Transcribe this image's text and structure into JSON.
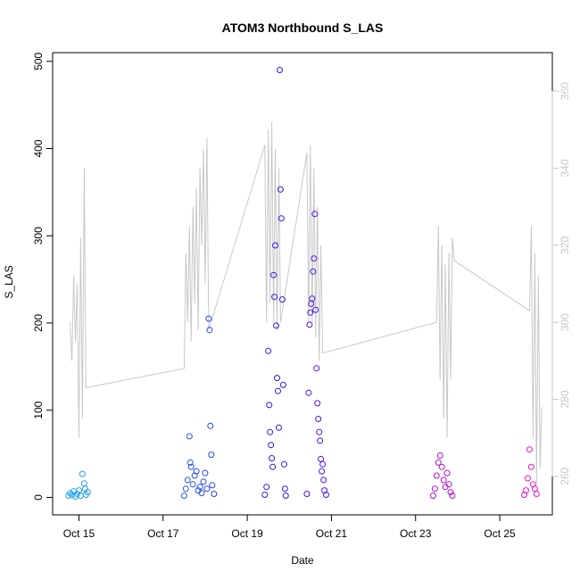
{
  "chart_data": {
    "type": "scatter",
    "title": "ATOM3 Northbound S_LAS",
    "xlabel": "Date",
    "ylabel": "S_LAS",
    "x_unit": "date",
    "xlim": [
      "2023-10-14T09:00",
      "2023-10-26T06:00"
    ],
    "ylim": [
      -20,
      510
    ],
    "x_ticks": [
      {
        "value": "2023-10-15T00:00",
        "label": "Oct 15"
      },
      {
        "value": "2023-10-17T00:00",
        "label": "Oct 17"
      },
      {
        "value": "2023-10-19T00:00",
        "label": "Oct 19"
      },
      {
        "value": "2023-10-21T00:00",
        "label": "Oct 21"
      },
      {
        "value": "2023-10-23T00:00",
        "label": "Oct 23"
      },
      {
        "value": "2023-10-25T00:00",
        "label": "Oct 25"
      }
    ],
    "y_ticks": [
      0,
      100,
      200,
      300,
      400,
      500
    ],
    "secondary_axis": {
      "side": "right",
      "ylim": [
        250,
        370
      ],
      "ticks": [
        260,
        280,
        300,
        320,
        340,
        360
      ],
      "color": "#c8c8c8"
    },
    "grid": false,
    "legend": "none",
    "point_color_start": "#1fb4ea",
    "point_color_mid": "#2b16e6",
    "point_color_end": "#ff10c8",
    "line_color": "#c8c8c8",
    "points": [
      {
        "x": "2023-10-14T18:00",
        "y": 2
      },
      {
        "x": "2023-10-14T19:00",
        "y": 5
      },
      {
        "x": "2023-10-14T20:00",
        "y": 3
      },
      {
        "x": "2023-10-14T21:00",
        "y": 7
      },
      {
        "x": "2023-10-14T22:00",
        "y": 1
      },
      {
        "x": "2023-10-14T23:00",
        "y": 4
      },
      {
        "x": "2023-10-15T00:00",
        "y": 8
      },
      {
        "x": "2023-10-15T01:00",
        "y": 2
      },
      {
        "x": "2023-10-15T02:00",
        "y": 27
      },
      {
        "x": "2023-10-15T03:00",
        "y": 16
      },
      {
        "x": "2023-10-15T03:30",
        "y": 10
      },
      {
        "x": "2023-10-15T04:00",
        "y": 3
      },
      {
        "x": "2023-10-15T05:00",
        "y": 6
      },
      {
        "x": "2023-10-17T12:00",
        "y": 2
      },
      {
        "x": "2023-10-17T13:00",
        "y": 10
      },
      {
        "x": "2023-10-17T14:00",
        "y": 20
      },
      {
        "x": "2023-10-17T15:00",
        "y": 70
      },
      {
        "x": "2023-10-17T15:30",
        "y": 40
      },
      {
        "x": "2023-10-17T16:00",
        "y": 35
      },
      {
        "x": "2023-10-17T17:00",
        "y": 15
      },
      {
        "x": "2023-10-17T18:00",
        "y": 25
      },
      {
        "x": "2023-10-17T19:00",
        "y": 30
      },
      {
        "x": "2023-10-17T20:00",
        "y": 8
      },
      {
        "x": "2023-10-17T21:00",
        "y": 12
      },
      {
        "x": "2023-10-17T22:00",
        "y": 5
      },
      {
        "x": "2023-10-17T23:00",
        "y": 18
      },
      {
        "x": "2023-10-18T00:00",
        "y": 28
      },
      {
        "x": "2023-10-18T01:00",
        "y": 10
      },
      {
        "x": "2023-10-18T02:00",
        "y": 205
      },
      {
        "x": "2023-10-18T02:30",
        "y": 192
      },
      {
        "x": "2023-10-18T03:00",
        "y": 82
      },
      {
        "x": "2023-10-18T03:30",
        "y": 49
      },
      {
        "x": "2023-10-18T04:00",
        "y": 14
      },
      {
        "x": "2023-10-18T05:00",
        "y": 4
      },
      {
        "x": "2023-10-19T10:00",
        "y": 3
      },
      {
        "x": "2023-10-19T11:00",
        "y": 12
      },
      {
        "x": "2023-10-19T12:00",
        "y": 168
      },
      {
        "x": "2023-10-19T12:30",
        "y": 106
      },
      {
        "x": "2023-10-19T13:00",
        "y": 75
      },
      {
        "x": "2023-10-19T13:30",
        "y": 60
      },
      {
        "x": "2023-10-19T14:00",
        "y": 45
      },
      {
        "x": "2023-10-19T14:30",
        "y": 35
      },
      {
        "x": "2023-10-19T15:00",
        "y": 255
      },
      {
        "x": "2023-10-19T15:30",
        "y": 230
      },
      {
        "x": "2023-10-19T16:00",
        "y": 289
      },
      {
        "x": "2023-10-19T16:30",
        "y": 197
      },
      {
        "x": "2023-10-19T17:00",
        "y": 137
      },
      {
        "x": "2023-10-19T17:30",
        "y": 122
      },
      {
        "x": "2023-10-19T18:00",
        "y": 80
      },
      {
        "x": "2023-10-19T18:30",
        "y": 490
      },
      {
        "x": "2023-10-19T19:00",
        "y": 353
      },
      {
        "x": "2023-10-19T19:30",
        "y": 320
      },
      {
        "x": "2023-10-19T20:00",
        "y": 227
      },
      {
        "x": "2023-10-19T20:30",
        "y": 129
      },
      {
        "x": "2023-10-19T21:00",
        "y": 38
      },
      {
        "x": "2023-10-19T21:30",
        "y": 10
      },
      {
        "x": "2023-10-19T22:00",
        "y": 2
      },
      {
        "x": "2023-10-20T10:00",
        "y": 4
      },
      {
        "x": "2023-10-20T11:00",
        "y": 120
      },
      {
        "x": "2023-10-20T11:30",
        "y": 198
      },
      {
        "x": "2023-10-20T12:00",
        "y": 212
      },
      {
        "x": "2023-10-20T12:30",
        "y": 222
      },
      {
        "x": "2023-10-20T13:00",
        "y": 228
      },
      {
        "x": "2023-10-20T13:30",
        "y": 259
      },
      {
        "x": "2023-10-20T14:00",
        "y": 274
      },
      {
        "x": "2023-10-20T14:30",
        "y": 325
      },
      {
        "x": "2023-10-20T15:00",
        "y": 215
      },
      {
        "x": "2023-10-20T15:30",
        "y": 148
      },
      {
        "x": "2023-10-20T16:00",
        "y": 108
      },
      {
        "x": "2023-10-20T16:30",
        "y": 90
      },
      {
        "x": "2023-10-20T17:00",
        "y": 75
      },
      {
        "x": "2023-10-20T17:30",
        "y": 65
      },
      {
        "x": "2023-10-20T18:00",
        "y": 44
      },
      {
        "x": "2023-10-20T18:30",
        "y": 30
      },
      {
        "x": "2023-10-20T19:00",
        "y": 38
      },
      {
        "x": "2023-10-20T19:30",
        "y": 20
      },
      {
        "x": "2023-10-20T20:00",
        "y": 8
      },
      {
        "x": "2023-10-20T21:00",
        "y": 3
      },
      {
        "x": "2023-10-23T10:00",
        "y": 2
      },
      {
        "x": "2023-10-23T11:00",
        "y": 10
      },
      {
        "x": "2023-10-23T12:00",
        "y": 25
      },
      {
        "x": "2023-10-23T13:00",
        "y": 40
      },
      {
        "x": "2023-10-23T14:00",
        "y": 48
      },
      {
        "x": "2023-10-23T15:00",
        "y": 35
      },
      {
        "x": "2023-10-23T16:00",
        "y": 20
      },
      {
        "x": "2023-10-23T17:00",
        "y": 12
      },
      {
        "x": "2023-10-23T18:00",
        "y": 28
      },
      {
        "x": "2023-10-23T19:00",
        "y": 15
      },
      {
        "x": "2023-10-23T20:00",
        "y": 6
      },
      {
        "x": "2023-10-23T21:00",
        "y": 2
      },
      {
        "x": "2023-10-25T14:00",
        "y": 3
      },
      {
        "x": "2023-10-25T15:00",
        "y": 8
      },
      {
        "x": "2023-10-25T16:00",
        "y": 22
      },
      {
        "x": "2023-10-25T17:00",
        "y": 55
      },
      {
        "x": "2023-10-25T18:00",
        "y": 35
      },
      {
        "x": "2023-10-25T19:00",
        "y": 15
      },
      {
        "x": "2023-10-25T20:00",
        "y": 10
      },
      {
        "x": "2023-10-25T21:00",
        "y": 4
      }
    ],
    "line": [
      {
        "x": "2023-10-14T19:00",
        "y2": 300
      },
      {
        "x": "2023-10-14T20:00",
        "y2": 290
      },
      {
        "x": "2023-10-14T21:00",
        "y2": 312
      },
      {
        "x": "2023-10-14T22:00",
        "y2": 295
      },
      {
        "x": "2023-10-14T23:00",
        "y2": 310
      },
      {
        "x": "2023-10-15T00:00",
        "y2": 270
      },
      {
        "x": "2023-10-15T01:00",
        "y2": 322
      },
      {
        "x": "2023-10-15T02:00",
        "y2": 275
      },
      {
        "x": "2023-10-15T03:00",
        "y2": 340
      },
      {
        "x": "2023-10-15T04:00",
        "y2": 283
      },
      {
        "x": "2023-10-17T12:00",
        "y2": 288
      },
      {
        "x": "2023-10-17T13:00",
        "y2": 318
      },
      {
        "x": "2023-10-17T14:00",
        "y2": 300
      },
      {
        "x": "2023-10-17T15:00",
        "y2": 325
      },
      {
        "x": "2023-10-17T16:00",
        "y2": 295
      },
      {
        "x": "2023-10-17T17:00",
        "y2": 330
      },
      {
        "x": "2023-10-17T18:00",
        "y2": 305
      },
      {
        "x": "2023-10-17T19:00",
        "y2": 335
      },
      {
        "x": "2023-10-17T20:00",
        "y2": 298
      },
      {
        "x": "2023-10-17T21:00",
        "y2": 340
      },
      {
        "x": "2023-10-17T22:00",
        "y2": 320
      },
      {
        "x": "2023-10-17T23:00",
        "y2": 345
      },
      {
        "x": "2023-10-18T00:00",
        "y2": 310
      },
      {
        "x": "2023-10-18T01:00",
        "y2": 348
      },
      {
        "x": "2023-10-18T02:00",
        "y2": 298
      },
      {
        "x": "2023-10-19T10:00",
        "y2": 346
      },
      {
        "x": "2023-10-19T11:00",
        "y2": 300
      },
      {
        "x": "2023-10-19T12:00",
        "y2": 350
      },
      {
        "x": "2023-10-19T13:00",
        "y2": 305
      },
      {
        "x": "2023-10-19T14:00",
        "y2": 352
      },
      {
        "x": "2023-10-19T15:00",
        "y2": 300
      },
      {
        "x": "2023-10-19T16:00",
        "y2": 345
      },
      {
        "x": "2023-10-19T17:00",
        "y2": 298
      },
      {
        "x": "2023-10-19T18:00",
        "y2": 340
      },
      {
        "x": "2023-10-19T19:00",
        "y2": 300
      },
      {
        "x": "2023-10-20T10:00",
        "y2": 344
      },
      {
        "x": "2023-10-20T11:00",
        "y2": 300
      },
      {
        "x": "2023-10-20T12:00",
        "y2": 346
      },
      {
        "x": "2023-10-20T13:00",
        "y2": 300
      },
      {
        "x": "2023-10-20T14:00",
        "y2": 340
      },
      {
        "x": "2023-10-20T15:00",
        "y2": 296
      },
      {
        "x": "2023-10-20T16:00",
        "y2": 330
      },
      {
        "x": "2023-10-20T17:00",
        "y2": 290
      },
      {
        "x": "2023-10-20T18:00",
        "y2": 320
      },
      {
        "x": "2023-10-20T19:00",
        "y2": 292
      },
      {
        "x": "2023-10-23T12:00",
        "y2": 300
      },
      {
        "x": "2023-10-23T13:00",
        "y2": 325
      },
      {
        "x": "2023-10-23T14:00",
        "y2": 285
      },
      {
        "x": "2023-10-23T15:00",
        "y2": 320
      },
      {
        "x": "2023-10-23T16:00",
        "y2": 275
      },
      {
        "x": "2023-10-23T17:00",
        "y2": 315
      },
      {
        "x": "2023-10-23T18:00",
        "y2": 270
      },
      {
        "x": "2023-10-23T19:00",
        "y2": 318
      },
      {
        "x": "2023-10-23T20:00",
        "y2": 285
      },
      {
        "x": "2023-10-23T21:00",
        "y2": 322
      },
      {
        "x": "2023-10-23T22:00",
        "y2": 316
      },
      {
        "x": "2023-10-25T17:00",
        "y2": 303
      },
      {
        "x": "2023-10-25T18:00",
        "y2": 325
      },
      {
        "x": "2023-10-25T19:00",
        "y2": 270
      },
      {
        "x": "2023-10-25T20:00",
        "y2": 318
      },
      {
        "x": "2023-10-25T21:00",
        "y2": 258
      },
      {
        "x": "2023-10-25T22:00",
        "y2": 312
      },
      {
        "x": "2023-10-25T23:00",
        "y2": 262
      },
      {
        "x": "2023-10-26T00:00",
        "y2": 278
      }
    ]
  }
}
